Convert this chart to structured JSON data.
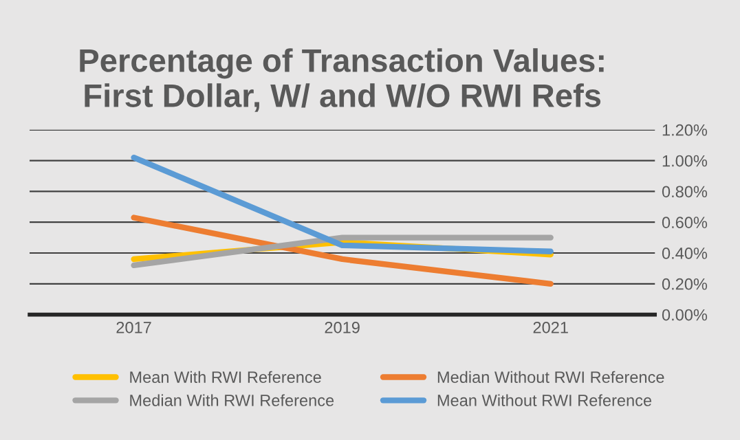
{
  "chart_data": {
    "type": "line",
    "title": "Percentage of Transaction Values:\nFirst Dollar, W/ and W/O RWI Refs",
    "categories": [
      "2017",
      "2019",
      "2021"
    ],
    "series": [
      {
        "name": "Mean With RWI Reference",
        "color": "#ffc000",
        "values": [
          0.36,
          0.47,
          0.39
        ]
      },
      {
        "name": "Median Without RWI Reference",
        "color": "#ed7d31",
        "values": [
          0.63,
          0.36,
          0.2
        ]
      },
      {
        "name": "Median With RWI Reference",
        "color": "#a5a5a5",
        "values": [
          0.32,
          0.5,
          0.5
        ]
      },
      {
        "name": "Mean Without RWI Reference",
        "color": "#5b9bd5",
        "values": [
          1.02,
          0.45,
          0.41
        ]
      }
    ],
    "ylim": [
      0,
      1.2
    ],
    "yticks": [
      {
        "value": 0,
        "label": "0.00%"
      },
      {
        "value": 0.2,
        "label": "0.20%"
      },
      {
        "value": 0.4,
        "label": "0.40%"
      },
      {
        "value": 0.6,
        "label": "0.60%"
      },
      {
        "value": 0.8,
        "label": "0.80%"
      },
      {
        "value": 1.0,
        "label": "1.00%"
      },
      {
        "value": 1.2,
        "label": "1.20%"
      }
    ],
    "grid": "y",
    "legend": "bottom",
    "marker": "none",
    "line_style": "solid"
  }
}
